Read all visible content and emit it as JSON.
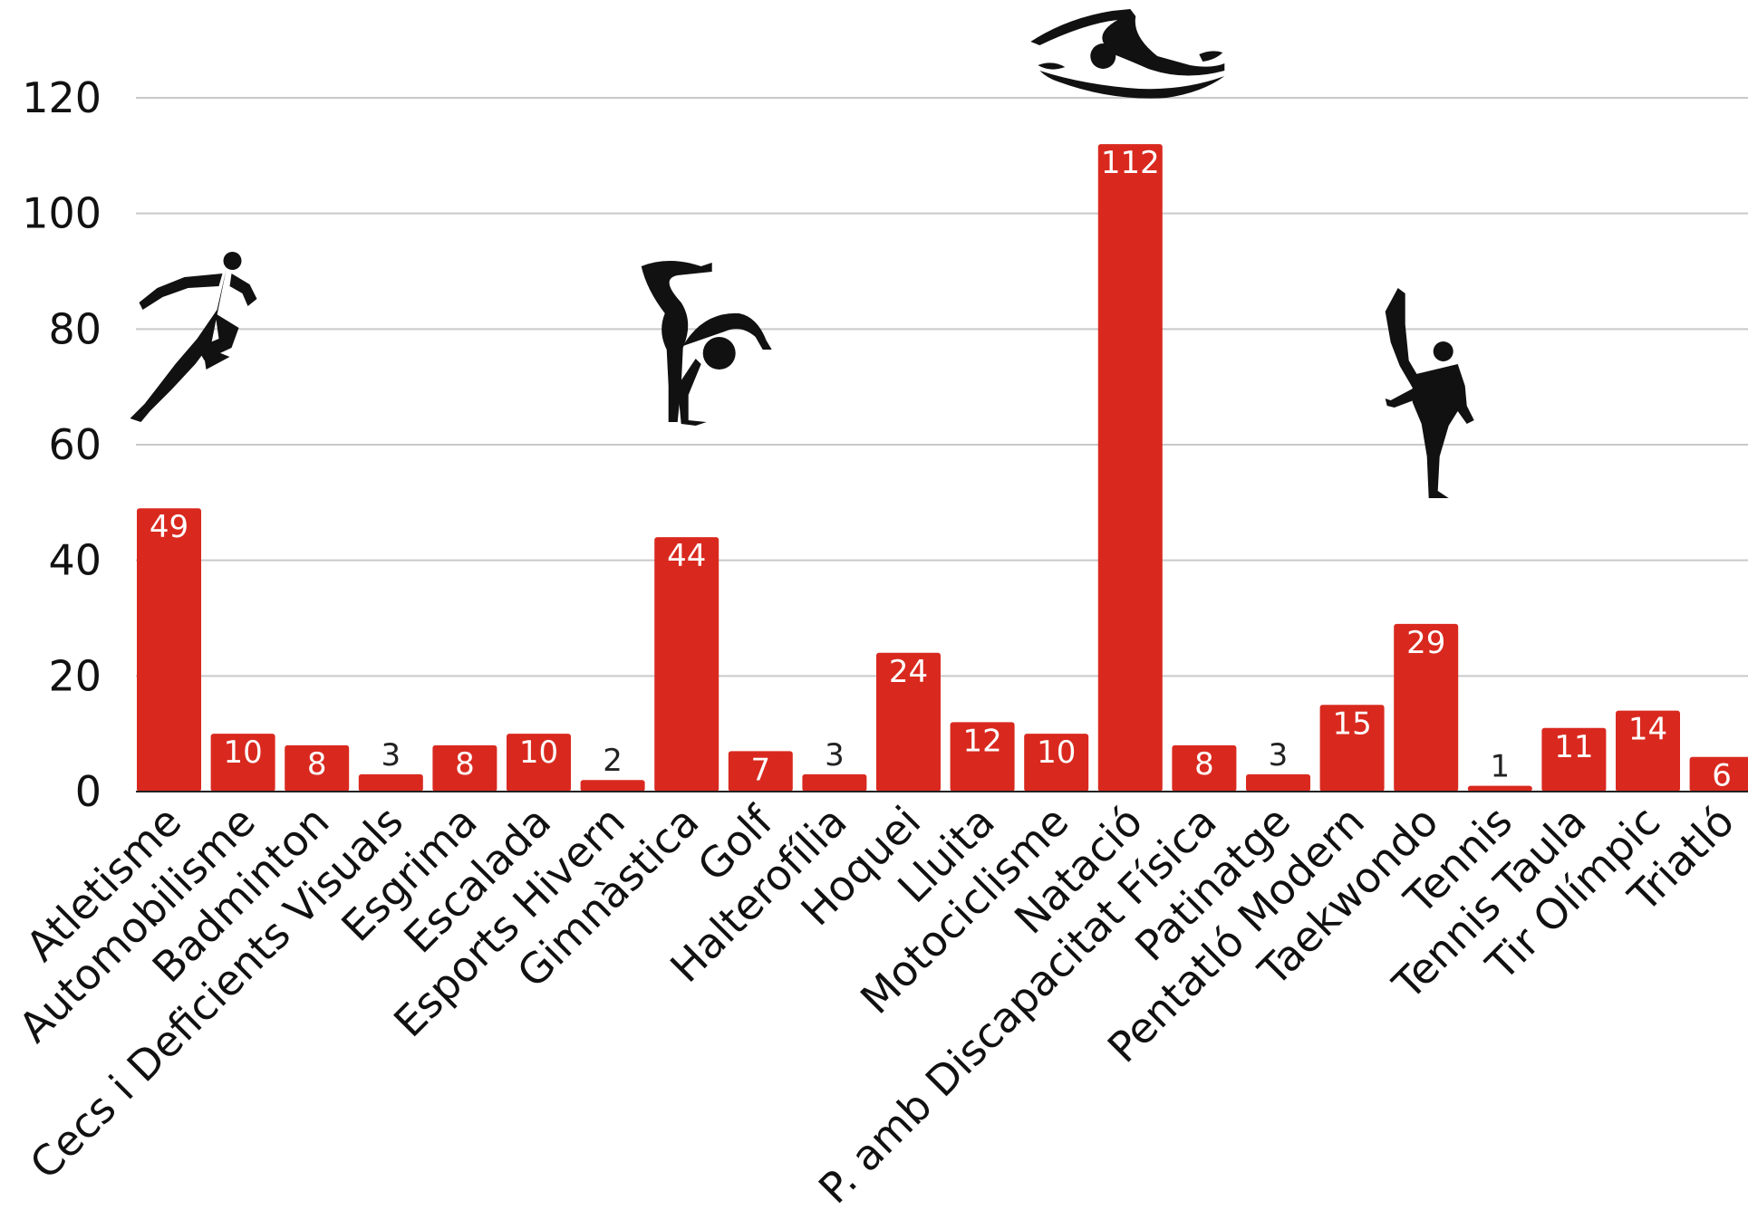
{
  "chart_data": {
    "type": "bar",
    "title": "",
    "xlabel": "",
    "ylabel": "",
    "ylim": [
      0,
      120
    ],
    "yticks": [
      0,
      20,
      40,
      60,
      80,
      100,
      120
    ],
    "grid": true,
    "categories": [
      "Atletisme",
      "Automobilisme",
      "Badminton",
      "Cecs i Deficients Visuals",
      "Esgrima",
      "Escalada",
      "Esports Hivern",
      "Gimnàstica",
      "Golf",
      "Halterofília",
      "Hoquei",
      "Lluita",
      "Motociclisme",
      "Natació",
      "P. amb Discapacitat Física",
      "Patinatge",
      "Pentatló Modern",
      "Taekwondo",
      "Tennis",
      "Tennis Taula",
      "Tir Olímpic",
      "Triatló"
    ],
    "values": [
      49,
      10,
      8,
      3,
      8,
      10,
      2,
      44,
      7,
      3,
      24,
      12,
      10,
      112,
      8,
      3,
      15,
      29,
      1,
      11,
      14,
      6
    ],
    "bar_color": "#d9291f",
    "label_color_inside": "#ffffff",
    "label_color_outside": "#222222",
    "grid_color": "#c9c9c9",
    "icons": [
      {
        "category": "Atletisme",
        "name": "runner-icon"
      },
      {
        "category": "Gimnàstica",
        "name": "gymnast-icon"
      },
      {
        "category": "Natació",
        "name": "swimmer-icon"
      },
      {
        "category": "Taekwondo",
        "name": "taekwondo-icon"
      }
    ]
  }
}
